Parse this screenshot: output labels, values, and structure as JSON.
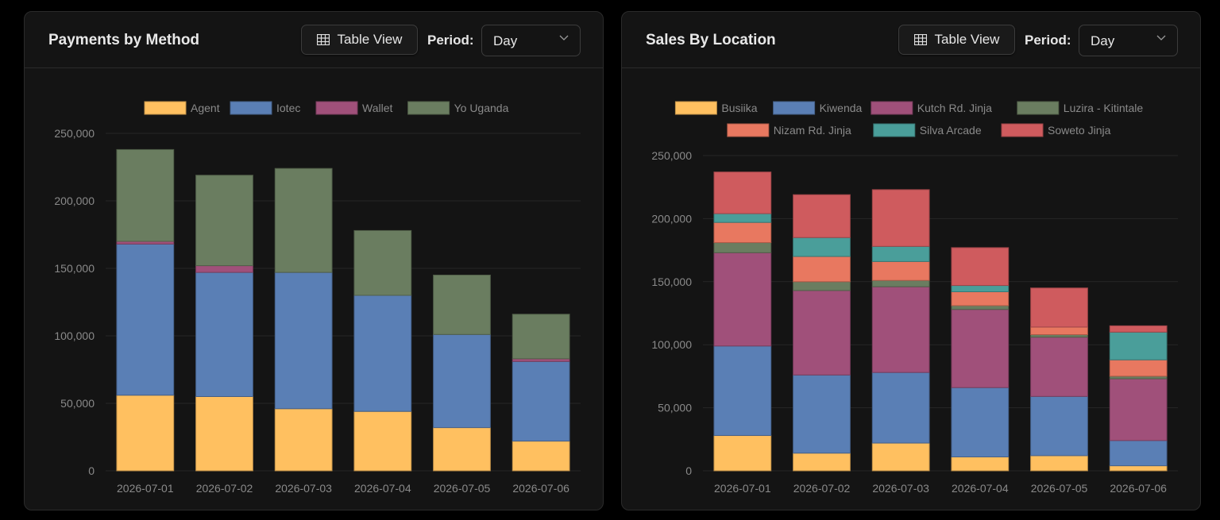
{
  "cards": [
    {
      "title": "Payments by Method",
      "table_view_label": "Table View",
      "period_label": "Period:",
      "period_value": "Day"
    },
    {
      "title": "Sales By Location",
      "table_view_label": "Table View",
      "period_label": "Period:",
      "period_value": "Day"
    }
  ],
  "icons": {
    "table": "table-grid-icon",
    "dropdown": "chevron-down-icon"
  },
  "chart_data": [
    {
      "type": "bar",
      "stacked": true,
      "title": "",
      "xlabel": "",
      "ylabel": "",
      "ylim": [
        0,
        250000
      ],
      "yticks": [
        0,
        50000,
        100000,
        150000,
        200000,
        250000
      ],
      "ytick_labels": [
        "0",
        "50,000",
        "100,000",
        "150,000",
        "200,000",
        "250,000"
      ],
      "legend_position": "top",
      "categories": [
        "2026-07-01",
        "2026-07-02",
        "2026-07-03",
        "2026-07-04",
        "2026-07-05",
        "2026-07-06"
      ],
      "series": [
        {
          "name": "Agent",
          "color": "#ffc060",
          "values": [
            56000,
            55000,
            46000,
            44000,
            32000,
            22000
          ]
        },
        {
          "name": "Iotec",
          "color": "#5a7fb5",
          "values": [
            112000,
            92000,
            101000,
            86000,
            69000,
            59000
          ]
        },
        {
          "name": "Wallet",
          "color": "#a0507a",
          "values": [
            2000,
            5000,
            0,
            0,
            0,
            2000
          ]
        },
        {
          "name": "Yo Uganda",
          "color": "#6a7d60",
          "values": [
            68000,
            67000,
            77000,
            48000,
            44000,
            33000
          ]
        }
      ]
    },
    {
      "type": "bar",
      "stacked": true,
      "title": "",
      "xlabel": "",
      "ylabel": "",
      "ylim": [
        0,
        250000
      ],
      "yticks": [
        0,
        50000,
        100000,
        150000,
        200000,
        250000
      ],
      "ytick_labels": [
        "0",
        "50,000",
        "100,000",
        "150,000",
        "200,000",
        "250,000"
      ],
      "legend_position": "top",
      "categories": [
        "2026-07-01",
        "2026-07-02",
        "2026-07-03",
        "2026-07-04",
        "2026-07-05",
        "2026-07-06"
      ],
      "series": [
        {
          "name": "Busiika",
          "color": "#ffc060",
          "values": [
            28000,
            14000,
            22000,
            11000,
            12000,
            4000
          ]
        },
        {
          "name": "Kiwenda",
          "color": "#5a7fb5",
          "values": [
            71000,
            62000,
            56000,
            55000,
            47000,
            20000
          ]
        },
        {
          "name": "Kutch Rd. Jinja",
          "color": "#a0507a",
          "values": [
            74000,
            67000,
            68000,
            62000,
            47000,
            49000
          ]
        },
        {
          "name": "Luzira - Kitintale",
          "color": "#6a7d60",
          "values": [
            8000,
            7000,
            5000,
            3000,
            2000,
            2000
          ]
        },
        {
          "name": "Nizam Rd. Jinja",
          "color": "#e87860",
          "values": [
            16000,
            20000,
            15000,
            11000,
            6000,
            13000
          ]
        },
        {
          "name": "Silva Arcade",
          "color": "#4a9e9a",
          "values": [
            7000,
            15000,
            12000,
            5000,
            0,
            22000
          ]
        },
        {
          "name": "Soweto Jinja",
          "color": "#cf5b5e",
          "values": [
            33000,
            34000,
            45000,
            30000,
            31000,
            5000
          ]
        }
      ]
    }
  ]
}
